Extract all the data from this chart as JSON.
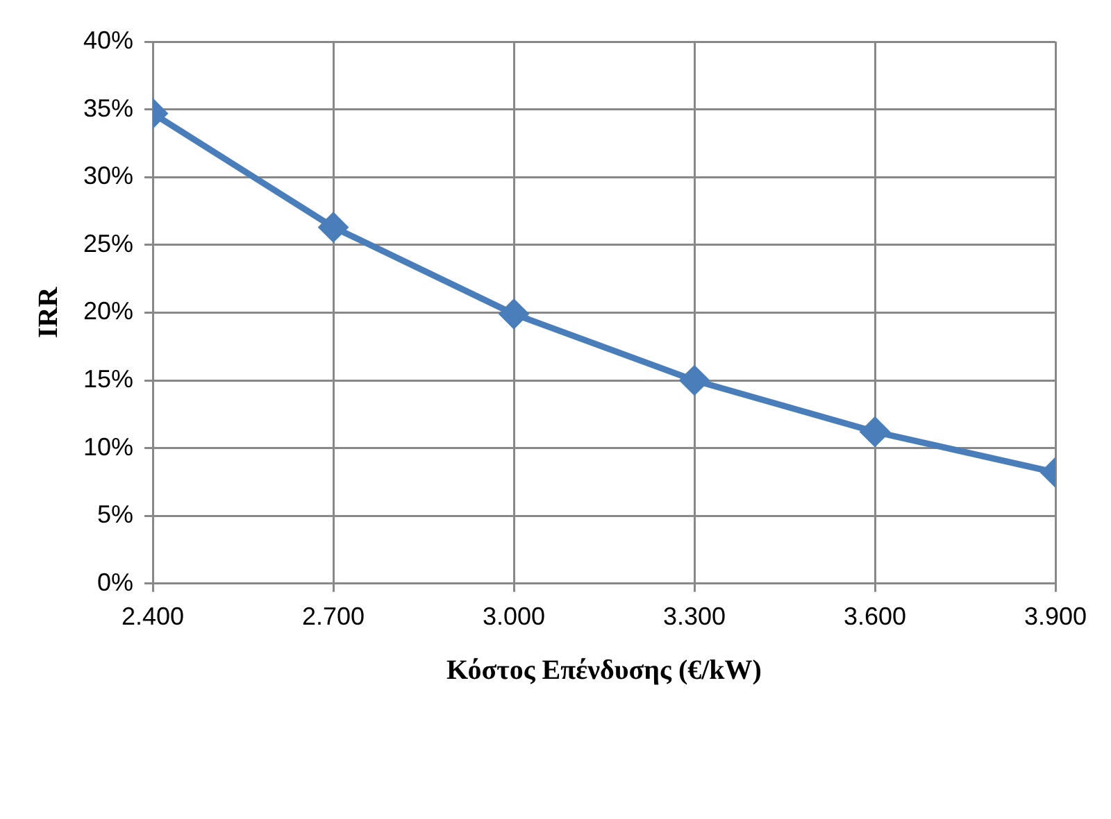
{
  "chart_data": {
    "type": "line",
    "xlabel": "Κόστος Επένδυσης (€/kW)",
    "ylabel": "IRR",
    "x": [
      2400,
      2700,
      3000,
      3300,
      3600,
      3900
    ],
    "series": [
      {
        "color": "#4a7ebb",
        "values": [
          34.7,
          26.3,
          19.9,
          15.0,
          11.2,
          8.2
        ]
      }
    ],
    "xlim": [
      2400,
      3900
    ],
    "xticks": [
      {
        "value": 2400,
        "label": "2.400"
      },
      {
        "value": 2700,
        "label": "2.700"
      },
      {
        "value": 3000,
        "label": "3.000"
      },
      {
        "value": 3300,
        "label": "3.300"
      },
      {
        "value": 3600,
        "label": "3.600"
      },
      {
        "value": 3900,
        "label": "3.900"
      }
    ],
    "ylim": [
      0,
      40
    ],
    "yticks": [
      {
        "value": 0,
        "label": "0%"
      },
      {
        "value": 5,
        "label": "5%"
      },
      {
        "value": 10,
        "label": "10%"
      },
      {
        "value": 15,
        "label": "15%"
      },
      {
        "value": 20,
        "label": "20%"
      },
      {
        "value": 25,
        "label": "25%"
      },
      {
        "value": 30,
        "label": "30%"
      },
      {
        "value": 35,
        "label": "35%"
      },
      {
        "value": 40,
        "label": "40%"
      }
    ],
    "grid": true,
    "marker": "diamond",
    "line_style": "solid",
    "legend": false
  }
}
